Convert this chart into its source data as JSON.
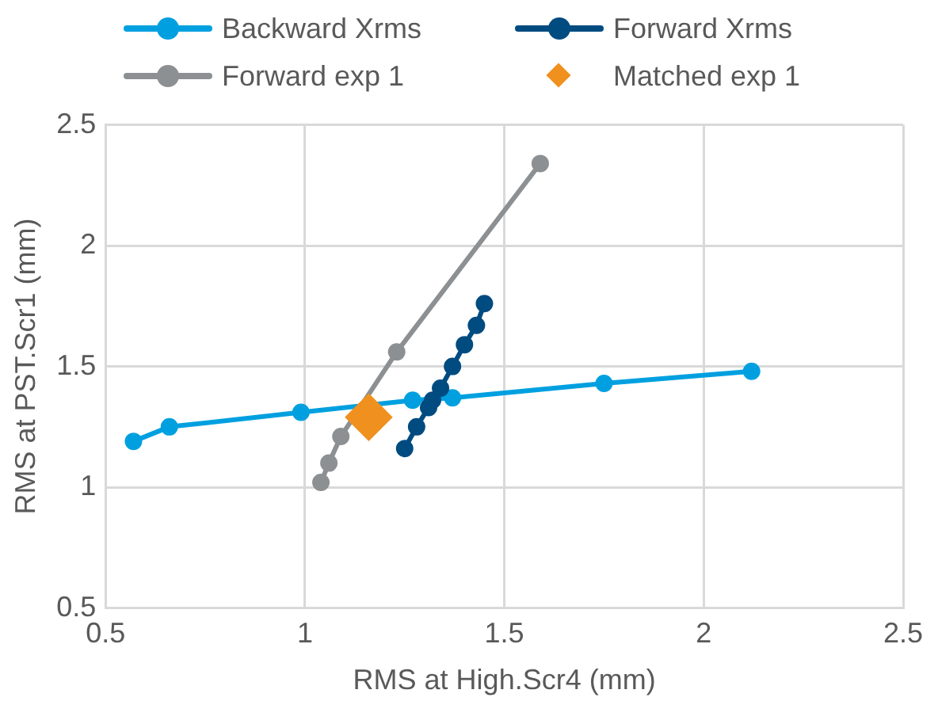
{
  "chart_data": {
    "type": "line",
    "xlabel": "RMS at High.Scr4 (mm)",
    "ylabel": "RMS at PST.Scr1 (mm)",
    "xlim": [
      0.5,
      2.5
    ],
    "xticks": [
      0.5,
      1,
      1.5,
      2,
      2.5
    ],
    "ylim": [
      0.5,
      2.5
    ],
    "yticks": [
      0.5,
      1,
      1.5,
      2,
      2.5
    ],
    "grid": true,
    "legend": "top",
    "marker": "circle",
    "line_style": "solid",
    "series": [
      {
        "name": "Backward Xrms",
        "color": "#00a0e0",
        "x": [
          0.57,
          0.66,
          0.99,
          1.27,
          1.37,
          1.75,
          2.12
        ],
        "values": [
          1.19,
          1.25,
          1.31,
          1.36,
          1.37,
          1.43,
          1.48
        ]
      },
      {
        "name": "Forward Xrms",
        "color": "#004b80",
        "x": [
          1.25,
          1.28,
          1.31,
          1.32,
          1.34,
          1.37,
          1.4,
          1.43,
          1.45
        ],
        "values": [
          1.16,
          1.25,
          1.33,
          1.36,
          1.41,
          1.5,
          1.59,
          1.67,
          1.76
        ]
      },
      {
        "name": "Forward exp 1",
        "color": "#8c9092",
        "x": [
          1.04,
          1.06,
          1.09,
          1.23,
          1.59
        ],
        "values": [
          1.02,
          1.1,
          1.21,
          1.56,
          2.34
        ]
      },
      {
        "name": "Matched exp 1",
        "type": "scatter",
        "marker": "diamond",
        "color": "#f0901e",
        "x": [
          1.16
        ],
        "values": [
          1.29
        ]
      }
    ]
  }
}
